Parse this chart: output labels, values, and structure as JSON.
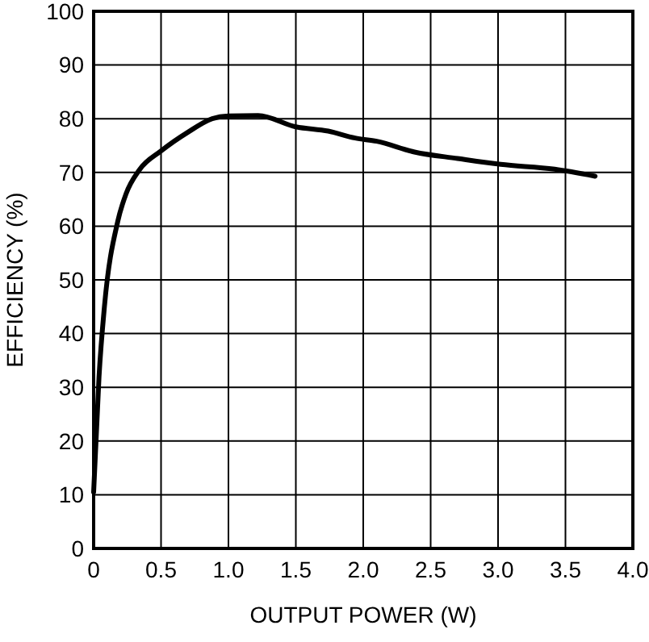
{
  "chart_data": {
    "type": "line",
    "xlabel": "OUTPUT POWER (W)",
    "ylabel": "EFFICIENCY (%)",
    "xlim": [
      0,
      4
    ],
    "ylim": [
      0,
      100
    ],
    "xticks": [
      {
        "value": 0,
        "label": "0"
      },
      0.5,
      {
        "value": 1,
        "label": "1.0"
      },
      1.5,
      {
        "value": 2,
        "label": "2.0"
      },
      2.5,
      {
        "value": 3,
        "label": "3.0"
      },
      3.5,
      {
        "value": 4,
        "label": "4.0"
      }
    ],
    "yticks": [
      0,
      10,
      20,
      30,
      40,
      50,
      60,
      70,
      80,
      90,
      100
    ],
    "grid": true,
    "marker": "none",
    "line_style": "solid",
    "series": [
      {
        "color": "#000000",
        "x": [
          0,
          0.04,
          0.08,
          0.18,
          0.24,
          0.34,
          0.5,
          0.7,
          0.88,
          1.0,
          1.22,
          1.5,
          1.74,
          1.94,
          2.1,
          2.38,
          2.7,
          3.02,
          3.42,
          3.72
        ],
        "values": [
          10.5,
          32,
          45,
          61,
          66,
          70.5,
          74,
          77.5,
          80,
          80.5,
          80.6,
          78.5,
          77.7,
          76.4,
          75.8,
          73.8,
          72.6,
          71.5,
          70.6,
          69.3
        ]
      }
    ]
  }
}
